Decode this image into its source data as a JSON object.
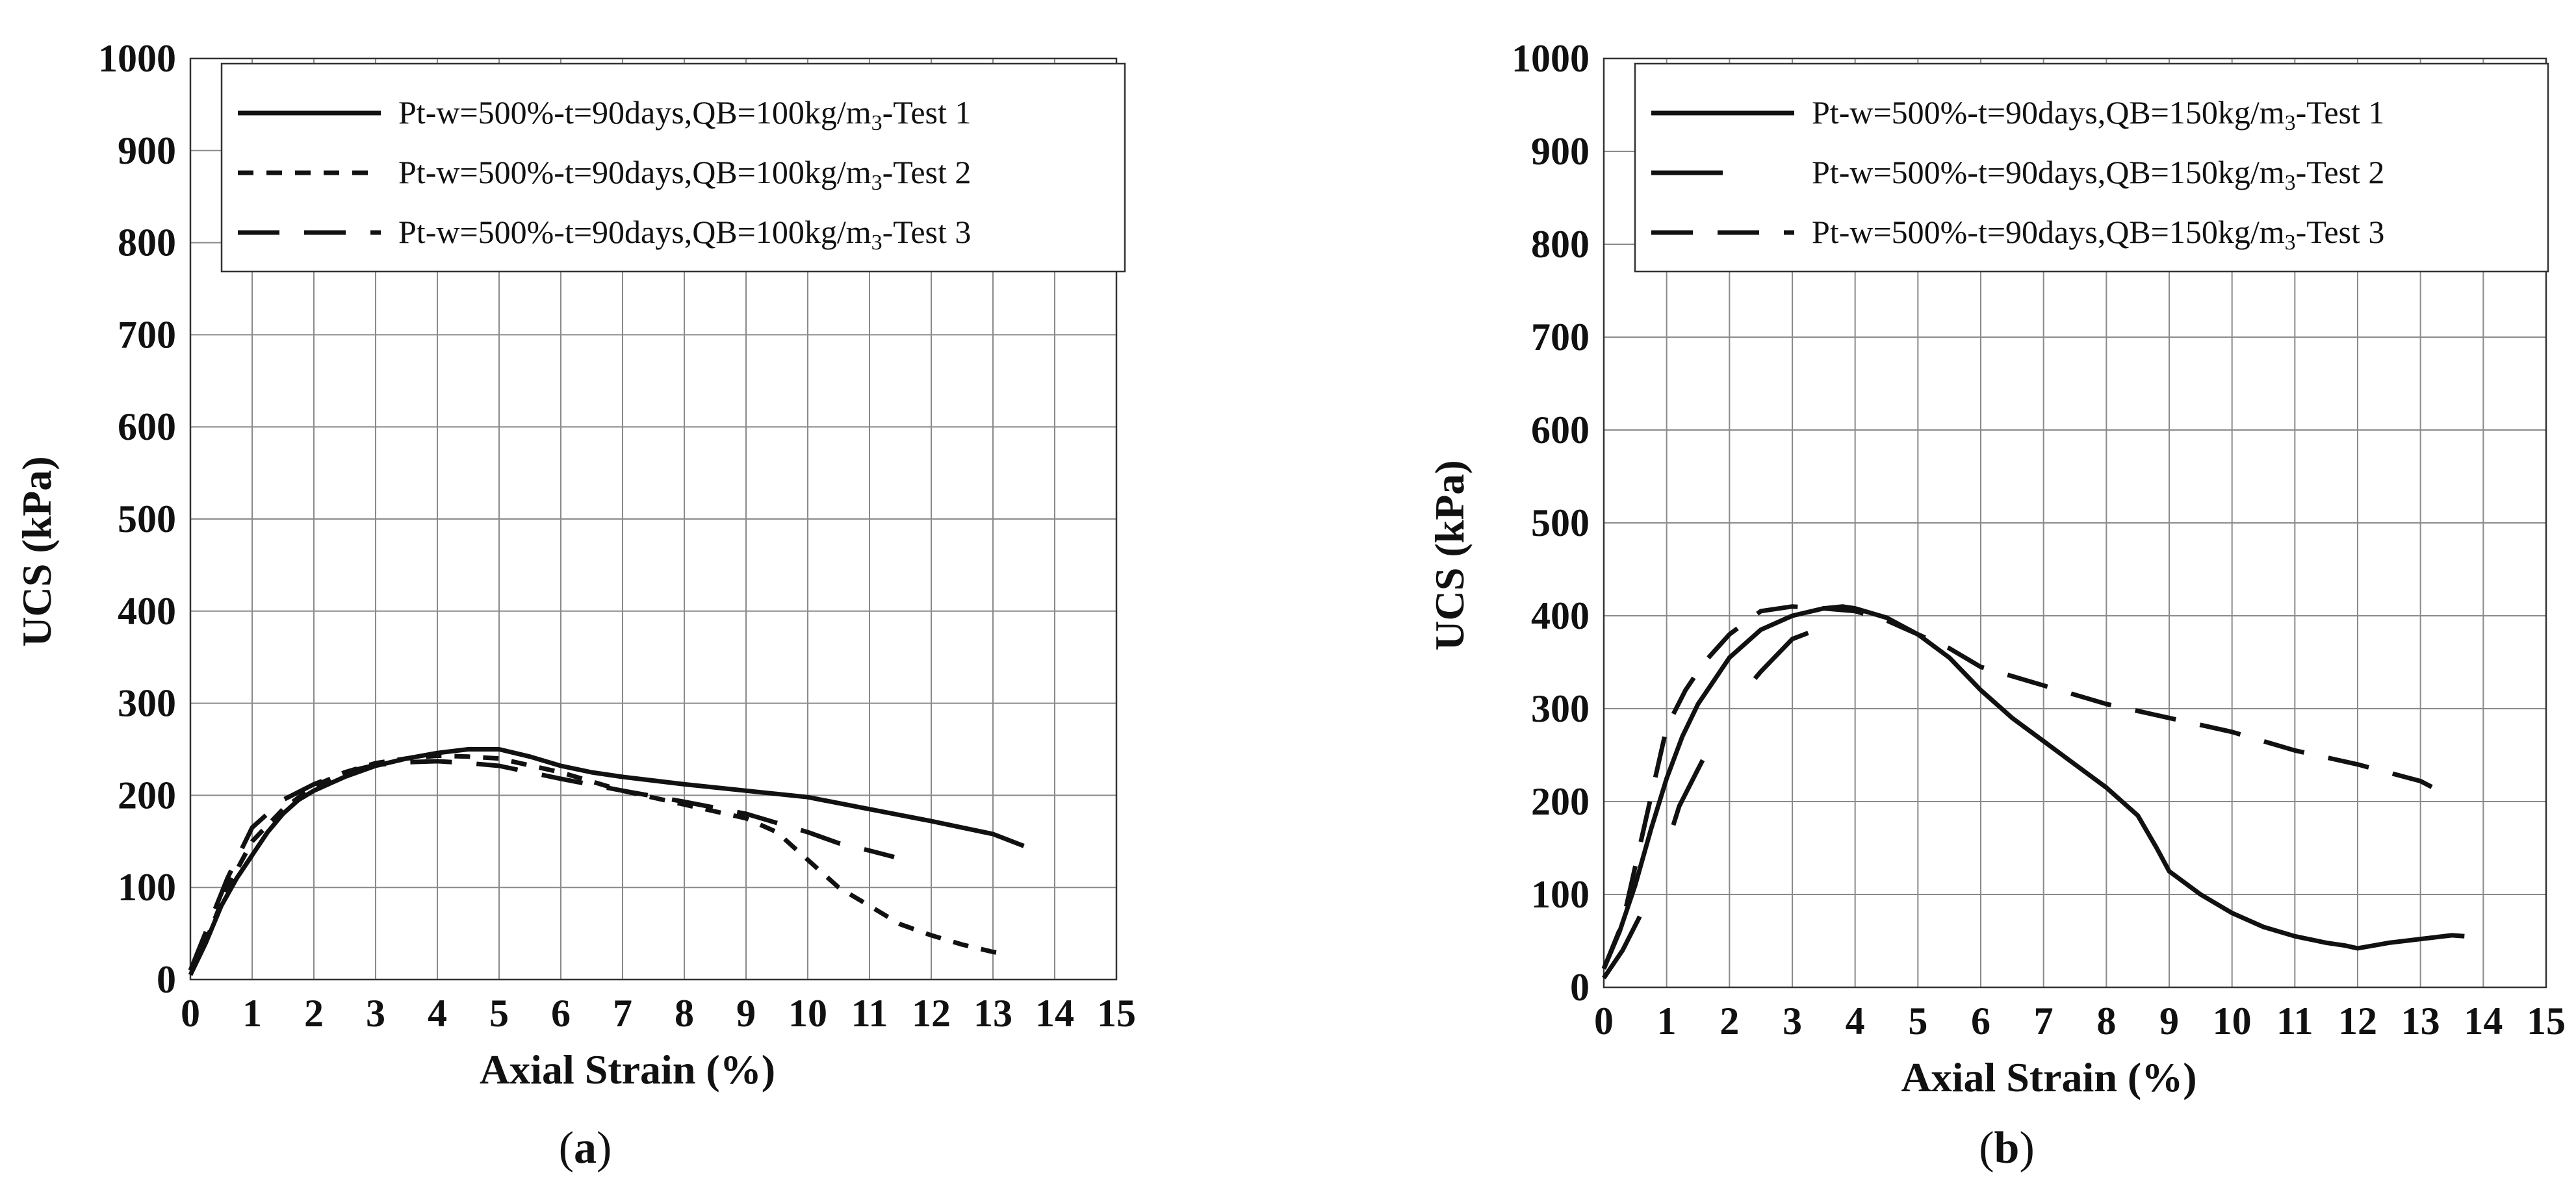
{
  "chart_data": [
    {
      "type": "line",
      "panel_label": "a",
      "xlabel": "Axial Strain (%)",
      "ylabel": "UCS (kPa)",
      "xlim": [
        0,
        15
      ],
      "ylim": [
        0,
        1000
      ],
      "xticks": [
        0,
        1,
        2,
        3,
        4,
        5,
        6,
        7,
        8,
        9,
        10,
        11,
        12,
        13,
        14,
        15
      ],
      "yticks": [
        0,
        100,
        200,
        300,
        400,
        500,
        600,
        700,
        800,
        900,
        1000
      ],
      "grid": true,
      "legend_position": "top-right",
      "series": [
        {
          "name": "Pt-w=500%-t=90days,QB=100kg/m3-Test 1",
          "legend_prefix": "Pt-w=500%-t=90days,QB=100kg/m",
          "legend_subscript": "3",
          "legend_suffix": "-Test 1",
          "style": "solid",
          "x": [
            0,
            0.25,
            0.5,
            0.75,
            1.0,
            1.25,
            1.5,
            1.75,
            2.0,
            2.5,
            3.0,
            3.5,
            4.0,
            4.5,
            5.0,
            5.5,
            6.0,
            6.5,
            7.0,
            8.0,
            9.0,
            10.0,
            11.0,
            12.0,
            13.0,
            13.5
          ],
          "y": [
            5,
            40,
            80,
            110,
            135,
            160,
            180,
            195,
            205,
            220,
            232,
            240,
            246,
            250,
            250,
            242,
            232,
            225,
            220,
            212,
            205,
            198,
            185,
            172,
            158,
            145
          ]
        },
        {
          "name": "Pt-w=500%-t=90days,QB=100kg/m3-Test 2",
          "legend_prefix": "Pt-w=500%-t=90days,QB=100kg/m",
          "legend_subscript": "3",
          "legend_suffix": "-Test 2",
          "style": "dotted",
          "x": [
            0,
            0.3,
            0.6,
            1.0,
            1.5,
            2.0,
            2.5,
            3.0,
            3.5,
            4.0,
            4.5,
            5.0,
            6.0,
            7.0,
            8.0,
            9.0,
            9.5,
            10.0,
            10.5,
            11.0,
            11.5,
            12.0,
            12.5,
            13.0,
            13.2
          ],
          "y": [
            10,
            50,
            100,
            150,
            185,
            210,
            225,
            235,
            240,
            243,
            242,
            240,
            225,
            205,
            190,
            175,
            160,
            130,
            100,
            80,
            60,
            48,
            38,
            30,
            28
          ]
        },
        {
          "name": "Pt-w=500%-t=90days,QB=100kg/m3-Test 3",
          "legend_prefix": "Pt-w=500%-t=90days,QB=100kg/m",
          "legend_subscript": "3",
          "legend_suffix": "-Test 3",
          "style": "dashed",
          "x": [
            0,
            0.3,
            0.6,
            1.0,
            1.5,
            2.0,
            2.5,
            3.0,
            3.5,
            4.0,
            4.5,
            5.0,
            5.5,
            6.0,
            7.0,
            8.0,
            9.0,
            10.0,
            10.5,
            11.0,
            11.4
          ],
          "y": [
            10,
            60,
            110,
            165,
            195,
            212,
            225,
            233,
            236,
            237,
            235,
            232,
            225,
            218,
            205,
            193,
            180,
            160,
            148,
            140,
            133
          ]
        }
      ]
    },
    {
      "type": "line",
      "panel_label": "b",
      "xlabel": "Axial Strain (%)",
      "ylabel": "UCS (kPa)",
      "xlim": [
        0,
        15
      ],
      "ylim": [
        0,
        1000
      ],
      "xticks": [
        0,
        1,
        2,
        3,
        4,
        5,
        6,
        7,
        8,
        9,
        10,
        11,
        12,
        13,
        14,
        15
      ],
      "yticks": [
        0,
        100,
        200,
        300,
        400,
        500,
        600,
        700,
        800,
        900,
        1000
      ],
      "grid": true,
      "legend_position": "top-right",
      "series": [
        {
          "name": "Pt-w=500%-t=90days,QB=150kg/m3-Test 1",
          "legend_prefix": "Pt-w=500%-t=90days,QB=150kg/m",
          "legend_subscript": "3",
          "legend_suffix": "-Test 1",
          "style": "solid",
          "x": [
            0,
            0.25,
            0.5,
            0.75,
            1.0,
            1.25,
            1.5,
            1.75,
            2.0,
            2.5,
            3.0,
            3.5,
            3.8,
            4.0,
            4.5,
            5.0,
            5.5,
            6.0,
            6.5,
            7.0,
            7.5,
            8.0,
            8.5,
            8.8,
            9.0,
            9.5,
            10.0,
            10.5,
            11.0,
            11.5,
            11.8,
            12.0,
            12.5,
            13.0,
            13.5,
            13.7
          ],
          "y": [
            20,
            60,
            110,
            170,
            225,
            270,
            305,
            330,
            355,
            385,
            400,
            408,
            410,
            408,
            398,
            380,
            355,
            320,
            290,
            265,
            240,
            215,
            185,
            150,
            125,
            100,
            80,
            65,
            55,
            48,
            45,
            42,
            48,
            52,
            56,
            55
          ]
        },
        {
          "name": "Pt-w=500%-t=90days,QB=150kg/m3-Test 2",
          "legend_prefix": "Pt-w=500%-t=90days,QB=150kg/m",
          "legend_subscript": "3",
          "legend_suffix": "-Test 2",
          "style": "longdash",
          "x": [
            0,
            0.3,
            0.6,
            0.9,
            1.2,
            1.5,
            2.0,
            2.5,
            3.0,
            3.5,
            4.0
          ],
          "y": [
            10,
            40,
            80,
            130,
            195,
            235,
            300,
            340,
            375,
            388,
            392
          ]
        },
        {
          "name": "Pt-w=500%-t=90days,QB=150kg/m3-Test 3",
          "legend_prefix": "Pt-w=500%-t=90days,QB=150kg/m",
          "legend_subscript": "3",
          "legend_suffix": "-Test 3",
          "style": "dashed",
          "x": [
            0,
            0.3,
            0.6,
            1.0,
            1.3,
            1.6,
            2.0,
            2.5,
            3.0,
            3.5,
            4.0,
            4.5,
            5.0,
            5.5,
            6.0,
            7.0,
            8.0,
            9.0,
            10.0,
            11.0,
            12.0,
            13.0,
            13.2
          ],
          "y": [
            20,
            70,
            160,
            280,
            320,
            350,
            380,
            405,
            410,
            408,
            405,
            395,
            380,
            365,
            345,
            325,
            305,
            290,
            275,
            255,
            240,
            222,
            215
          ]
        }
      ]
    }
  ]
}
